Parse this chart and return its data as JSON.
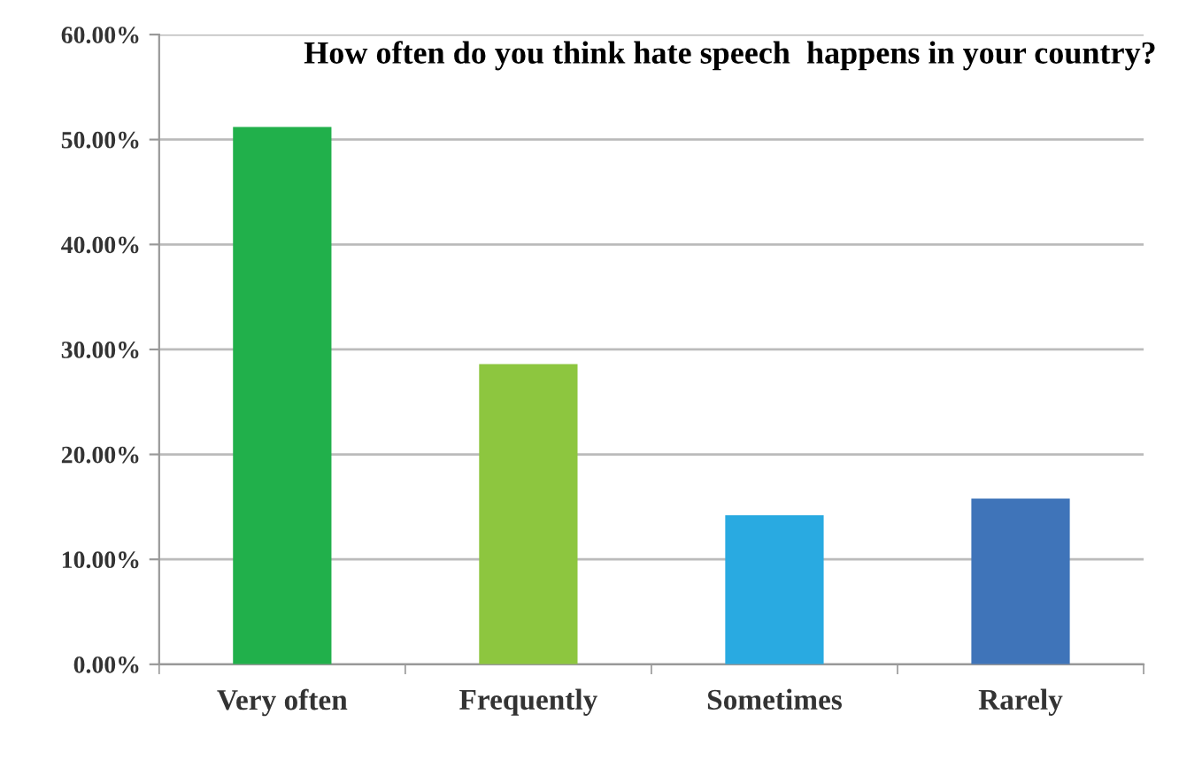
{
  "chart_data": {
    "type": "bar",
    "title": "How often do you think hate speech  happens in your country?",
    "categories": [
      "Very often",
      "Frequently",
      "Sometimes",
      "Rarely"
    ],
    "values": [
      51.2,
      28.6,
      14.2,
      15.8
    ],
    "colors": [
      "#21b04b",
      "#8dc63f",
      "#29aae1",
      "#3f74b9"
    ],
    "ylim": [
      0,
      60
    ],
    "yticks": [
      {
        "value": 0,
        "label": "0.00%"
      },
      {
        "value": 10,
        "label": "10.00%"
      },
      {
        "value": 20,
        "label": "20.00%"
      },
      {
        "value": 30,
        "label": "30.00%"
      },
      {
        "value": 40,
        "label": "40.00%"
      },
      {
        "value": 50,
        "label": "50.00%"
      },
      {
        "value": 60,
        "label": "60.00%"
      }
    ],
    "grid": "y"
  }
}
